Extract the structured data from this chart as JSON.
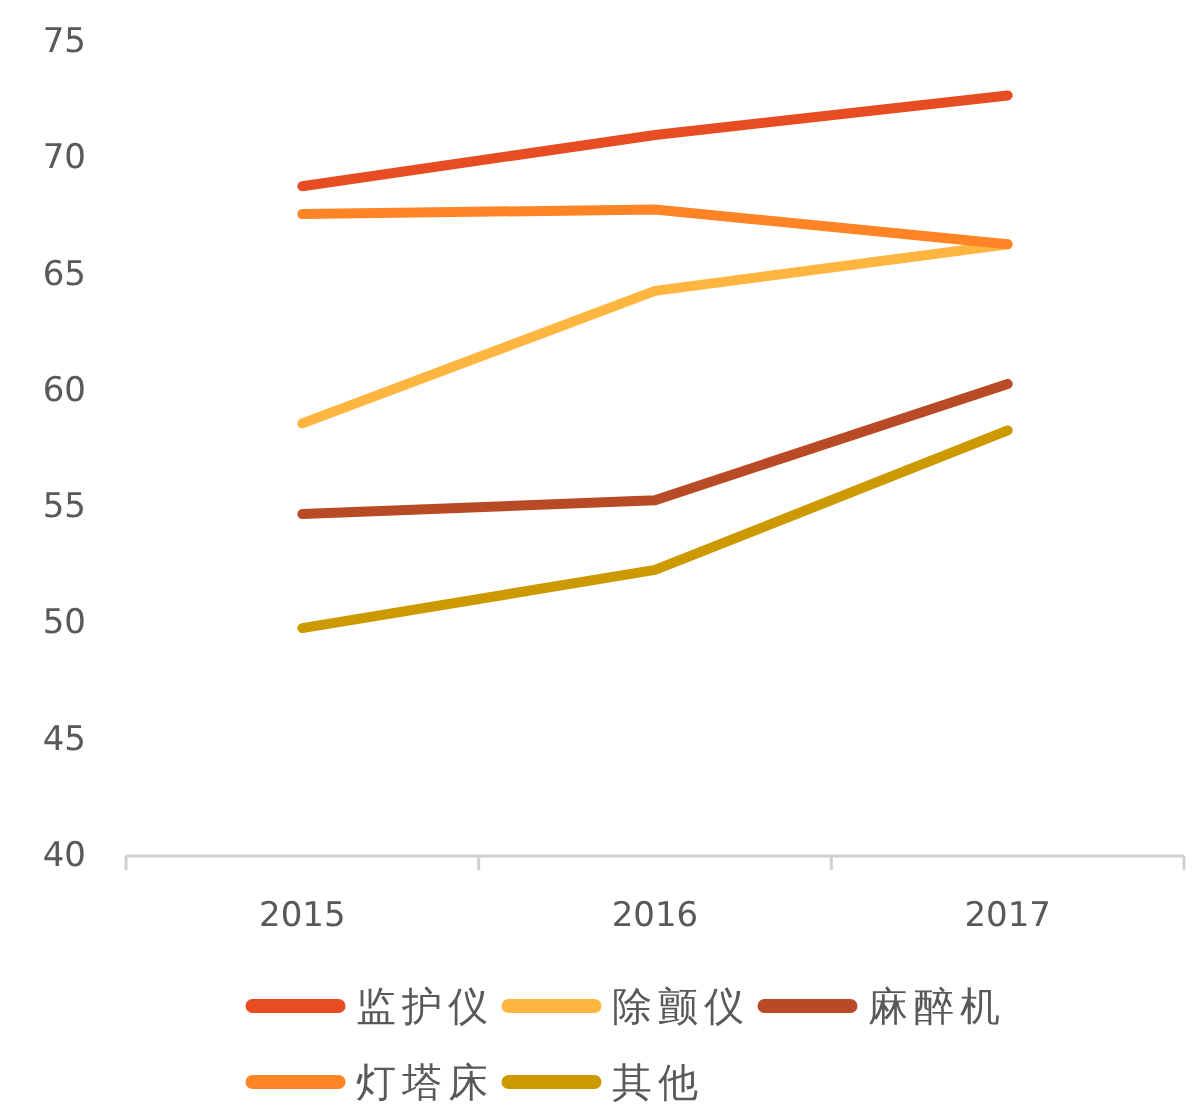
{
  "chart_data": {
    "type": "line",
    "categories": [
      "2015",
      "2016",
      "2017"
    ],
    "series": [
      {
        "name": "监护仪",
        "color": "#e84c22",
        "values": [
          68.8,
          71.0,
          72.7
        ]
      },
      {
        "name": "除颤仪",
        "color": "#ffb641",
        "values": [
          58.6,
          64.3,
          66.3
        ]
      },
      {
        "name": "麻醉机",
        "color": "#b94a26",
        "values": [
          54.7,
          55.3,
          60.3
        ]
      },
      {
        "name": "灯塔床",
        "color": "#fe8426",
        "values": [
          67.6,
          67.8,
          66.3
        ]
      },
      {
        "name": "其他",
        "color": "#cc9900",
        "values": [
          49.8,
          52.3,
          58.3
        ]
      }
    ],
    "ylim": [
      40,
      75
    ],
    "yticks": [
      40,
      45,
      50,
      55,
      60,
      65,
      70,
      75
    ],
    "legend": "bottom"
  }
}
